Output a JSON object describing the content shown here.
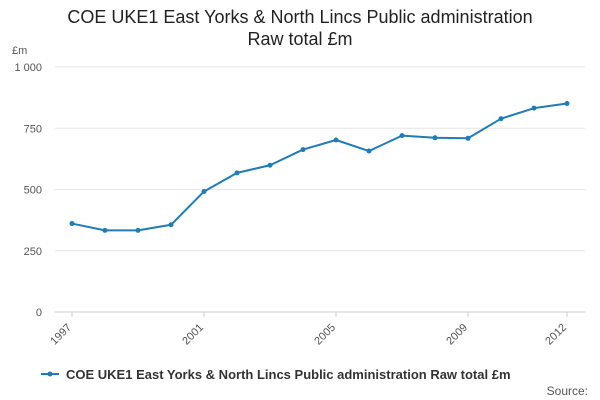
{
  "title_line1": "COE UKE1 East Yorks & North Lincs Public administration",
  "title_line2": "Raw total £m",
  "source_label": "Source:",
  "chart_data": {
    "type": "line",
    "title": "COE UKE1 East Yorks & North Lincs Public administration Raw total £m",
    "ylabel": "£m",
    "ylim": [
      0,
      1000
    ],
    "y_ticks": [
      0,
      250,
      500,
      750,
      1000
    ],
    "y_tick_labels": [
      "0",
      "250",
      "500",
      "750",
      "1 000"
    ],
    "x_tick_labels": [
      "1997",
      "2001",
      "2005",
      "2009",
      "2012"
    ],
    "grid": true,
    "legend": "bottom",
    "color": "#1f7cb4",
    "series": [
      {
        "name": "COE UKE1 East Yorks & North Lincs Public administration Raw total £m",
        "x": [
          1997,
          1998,
          1999,
          2000,
          2001,
          2002,
          2003,
          2004,
          2005,
          2006,
          2007,
          2008,
          2009,
          2010,
          2011,
          2012
        ],
        "values": [
          361,
          333,
          333,
          356,
          492,
          568,
          599,
          663,
          702,
          657,
          720,
          711,
          709,
          789,
          832,
          851
        ]
      }
    ]
  }
}
